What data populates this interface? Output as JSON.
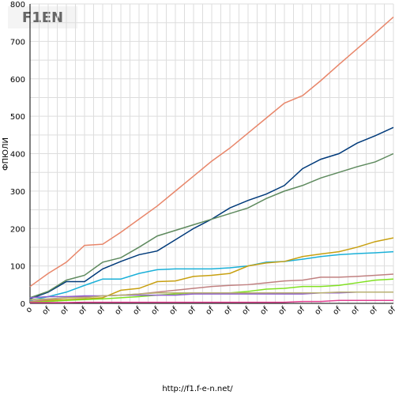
{
  "logo": "F1EN",
  "footer": "http://f1.f-e-n.net/",
  "chart_data": {
    "type": "line",
    "y_label": "ФПЮЛИ",
    "categories": [
      "o",
      "of",
      "of",
      "of",
      "of",
      "of",
      "of",
      "of",
      "of",
      "of",
      "of",
      "of",
      "of",
      "of",
      "of",
      "of",
      "of",
      "of",
      "of",
      "of",
      "of"
    ],
    "ylim": [
      0,
      800
    ],
    "yticks": [
      0,
      100,
      200,
      300,
      400,
      500,
      600,
      700,
      800
    ],
    "grid": true,
    "series": [
      {
        "color": "#e8866a",
        "values": [
          45,
          80,
          110,
          155,
          158,
          190,
          225,
          260,
          300,
          340,
          380,
          415,
          455,
          495,
          535,
          555,
          595,
          638,
          680,
          722,
          765
        ]
      },
      {
        "color": "#003a7a",
        "values": [
          12,
          30,
          58,
          58,
          92,
          112,
          130,
          140,
          170,
          200,
          225,
          255,
          275,
          292,
          315,
          360,
          385,
          400,
          428,
          448,
          470
        ]
      },
      {
        "color": "#5e8a5e",
        "values": [
          15,
          32,
          62,
          75,
          110,
          122,
          150,
          180,
          195,
          210,
          225,
          240,
          255,
          280,
          300,
          315,
          335,
          350,
          365,
          378,
          400
        ]
      },
      {
        "color": "#1ab0d8",
        "values": [
          8,
          18,
          30,
          48,
          65,
          65,
          80,
          90,
          92,
          92,
          92,
          95,
          100,
          110,
          112,
          118,
          125,
          130,
          133,
          135,
          138
        ]
      },
      {
        "color": "#c8a010",
        "values": [
          5,
          8,
          10,
          12,
          15,
          35,
          40,
          58,
          60,
          72,
          75,
          80,
          100,
          108,
          112,
          125,
          132,
          138,
          150,
          165,
          175
        ]
      },
      {
        "color": "#c08080",
        "values": [
          5,
          10,
          15,
          18,
          20,
          22,
          25,
          30,
          35,
          40,
          45,
          48,
          50,
          55,
          60,
          62,
          70,
          70,
          72,
          75,
          78
        ]
      },
      {
        "color": "#80e020",
        "values": [
          3,
          5,
          8,
          10,
          12,
          15,
          18,
          22,
          25,
          28,
          28,
          28,
          32,
          38,
          40,
          45,
          45,
          48,
          55,
          62,
          65
        ]
      },
      {
        "color": "#9060d0",
        "values": [
          15,
          18,
          18,
          20,
          20,
          22,
          22,
          22,
          22,
          25,
          25,
          25,
          25,
          25,
          25,
          25,
          28,
          28,
          30,
          30,
          30
        ]
      },
      {
        "color": "#b8b070",
        "values": [
          10,
          12,
          15,
          15,
          20,
          22,
          25,
          28,
          28,
          28,
          28,
          28,
          28,
          28,
          28,
          28,
          28,
          30,
          30,
          30,
          30
        ]
      },
      {
        "color": "#e04090",
        "values": [
          2,
          2,
          2,
          3,
          3,
          3,
          3,
          3,
          3,
          3,
          3,
          3,
          3,
          3,
          3,
          5,
          5,
          8,
          8,
          8,
          8
        ]
      }
    ]
  }
}
